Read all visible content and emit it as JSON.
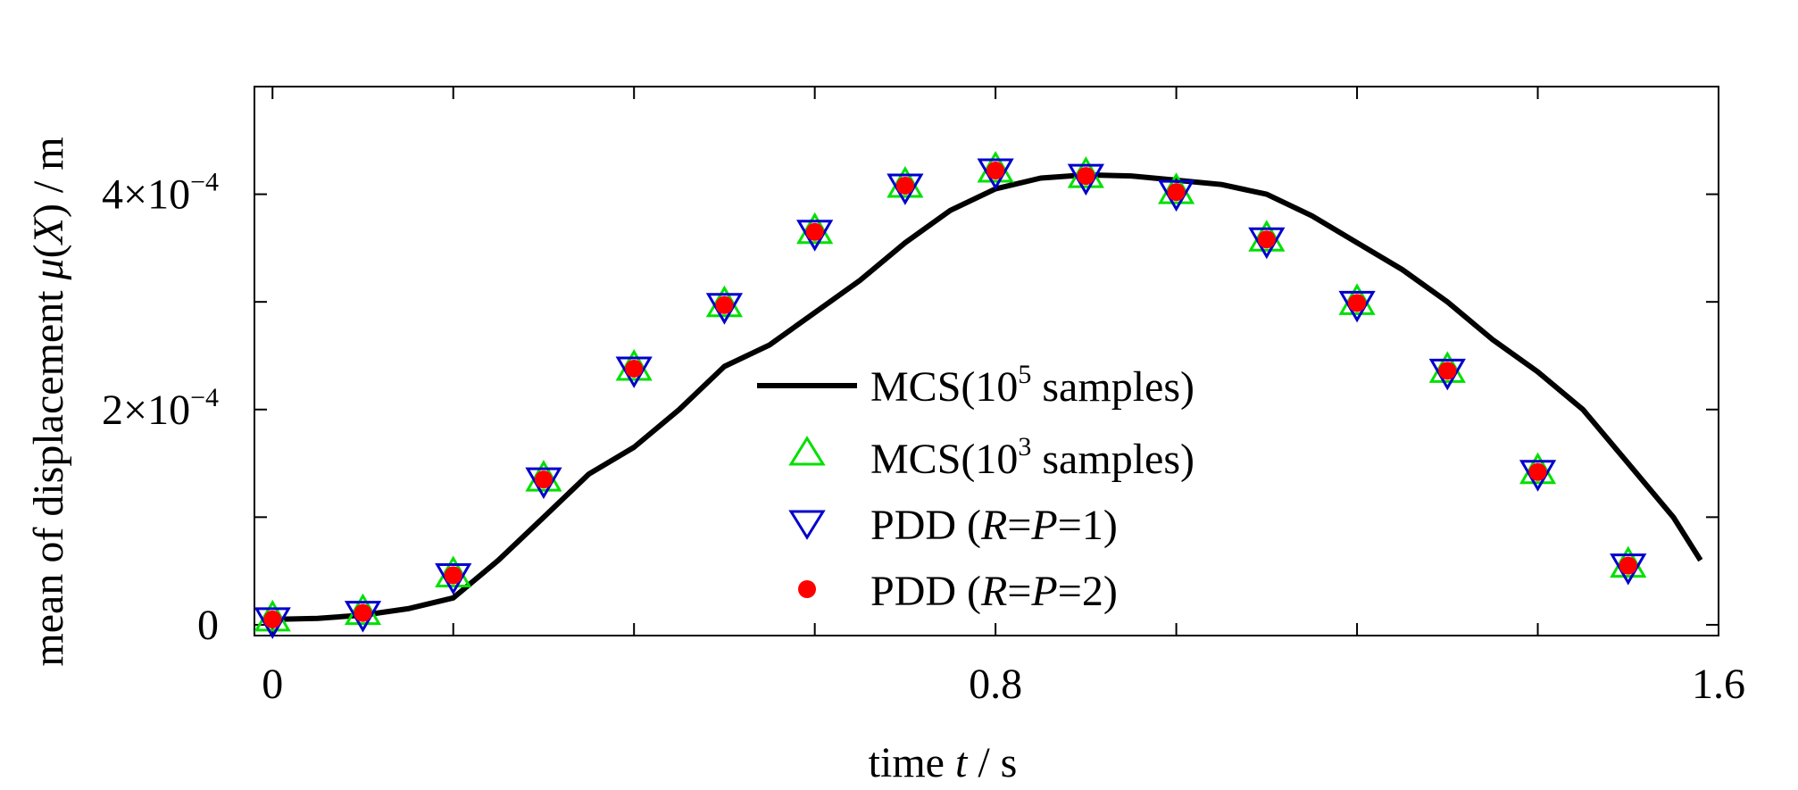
{
  "chart_data": {
    "type": "line",
    "x_axis": {
      "label_prefix": "time ",
      "label_var": "t",
      "label_suffix": " / s",
      "range": [
        -0.02,
        1.6
      ],
      "tick_values": [
        0,
        0.2,
        0.4,
        0.6,
        0.8,
        1.0,
        1.2,
        1.4,
        1.6
      ],
      "tick_labels": [
        "0",
        "",
        "",
        "",
        "0.8",
        "",
        "",
        "",
        "1.6"
      ]
    },
    "y_axis": {
      "label_prefix": "mean of displacement ",
      "label_mu": "μ",
      "label_X": "X",
      "label_suffix": " / m",
      "range": [
        -1e-05,
        0.0005
      ],
      "tick_values": [
        0,
        0.0001,
        0.0002,
        0.0003,
        0.0004,
        0.0005
      ],
      "tick_labels": [
        {
          "text": "0",
          "mantissa": "",
          "exponent": ""
        },
        {
          "text": "",
          "mantissa": "",
          "exponent": ""
        },
        {
          "text": "",
          "mantissa": "2×10",
          "exponent": "−4"
        },
        {
          "text": "",
          "mantissa": "",
          "exponent": ""
        },
        {
          "text": "",
          "mantissa": "4×10",
          "exponent": "−4"
        },
        {
          "text": "",
          "mantissa": "",
          "exponent": ""
        }
      ]
    },
    "grid": false,
    "legend_position": "center",
    "series": [
      {
        "name": "MCS(10^5 samples)",
        "style": "line",
        "color": "#000000",
        "x": [
          0,
          0.05,
          0.1,
          0.15,
          0.2,
          0.25,
          0.3,
          0.35,
          0.4,
          0.45,
          0.5,
          0.55,
          0.6,
          0.65,
          0.7,
          0.75,
          0.8,
          0.85,
          0.9,
          0.95,
          1.0,
          1.05,
          1.1,
          1.15,
          1.2,
          1.25,
          1.3,
          1.35,
          1.4,
          1.45,
          1.5,
          1.55,
          1.58
        ],
        "y": [
          5e-06,
          6e-06,
          9e-06,
          1.5e-05,
          2.5e-05,
          6e-05,
          0.0001,
          0.00014,
          0.000165,
          0.0002,
          0.00024,
          0.00026,
          0.00029,
          0.00032,
          0.000355,
          0.000385,
          0.000405,
          0.000415,
          0.000418,
          0.000417,
          0.000413,
          0.000409,
          0.0004,
          0.00038,
          0.000355,
          0.00033,
          0.0003,
          0.000265,
          0.000235,
          0.0002,
          0.00015,
          0.0001,
          6e-05
        ]
      },
      {
        "name": "MCS(10^3 samples)",
        "style": "marker",
        "marker": "triangle-up",
        "color": "#00e000",
        "x": [
          0,
          0.1,
          0.2,
          0.3,
          0.4,
          0.5,
          0.6,
          0.7,
          0.8,
          0.9,
          1.0,
          1.1,
          1.2,
          1.3,
          1.4,
          1.5
        ],
        "y": [
          5e-06,
          1.1e-05,
          4.6e-05,
          0.000135,
          0.000238,
          0.000297,
          0.000365,
          0.000408,
          0.000422,
          0.000417,
          0.000402,
          0.000358,
          0.000299,
          0.000236,
          0.000142,
          5.5e-05
        ]
      },
      {
        "name": "PDD (R=P=1)",
        "style": "marker",
        "marker": "triangle-down",
        "color": "#0000cc",
        "x": [
          0,
          0.1,
          0.2,
          0.3,
          0.4,
          0.5,
          0.6,
          0.7,
          0.8,
          0.9,
          1.0,
          1.1,
          1.2,
          1.3,
          1.4,
          1.5
        ],
        "y": [
          5e-06,
          1.1e-05,
          4.6e-05,
          0.000135,
          0.000238,
          0.000297,
          0.000365,
          0.000408,
          0.000422,
          0.000417,
          0.000402,
          0.000358,
          0.000299,
          0.000236,
          0.000142,
          5.5e-05
        ]
      },
      {
        "name": "PDD (R=P=2)",
        "style": "marker",
        "marker": "dot",
        "color": "#ff0000",
        "x": [
          0,
          0.1,
          0.2,
          0.3,
          0.4,
          0.5,
          0.6,
          0.7,
          0.8,
          0.9,
          1.0,
          1.1,
          1.2,
          1.3,
          1.4,
          1.5
        ],
        "y": [
          5e-06,
          1.1e-05,
          4.6e-05,
          0.000135,
          0.000238,
          0.000297,
          0.000365,
          0.000408,
          0.000422,
          0.000417,
          0.000402,
          0.000358,
          0.000299,
          0.000236,
          0.000142,
          5.5e-05
        ]
      }
    ],
    "legend": [
      {
        "prefix": "MCS(10",
        "sup": "5",
        "suffix": " samples)",
        "marker": "line"
      },
      {
        "prefix": "MCS(10",
        "sup": "3",
        "suffix": " samples)",
        "marker": "triangle-up"
      },
      {
        "prefix": "PDD (",
        "R": "R",
        "eq1": "=",
        "P": "P",
        "eq2": "=1)",
        "marker": "triangle-down"
      },
      {
        "prefix": "PDD (",
        "R": "R",
        "eq1": "=",
        "P": "P",
        "eq2": "=2)",
        "marker": "dot"
      }
    ]
  }
}
